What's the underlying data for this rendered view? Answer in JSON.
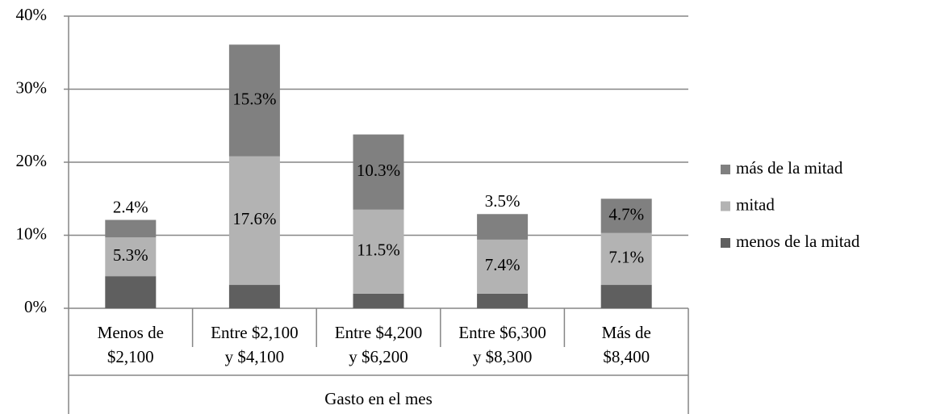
{
  "chart_data": {
    "type": "stacked_bar",
    "x_label": "Gasto en el mes",
    "categories": [
      "Menos de\n$2,100",
      "Entre $2,100\ny $4,100",
      "Entre $4,200\ny $6,200",
      "Entre $6,300\ny $8,300",
      "Más de\n$8,400"
    ],
    "series": [
      {
        "name": "menos de la mitad",
        "color": "#5f5f5f",
        "values": [
          4.4,
          3.2,
          2.0,
          2.0,
          3.2
        ]
      },
      {
        "name": "mitad",
        "color": "#b3b3b3",
        "values": [
          5.3,
          17.6,
          11.5,
          7.4,
          7.1
        ],
        "value_labels": [
          "5.3%",
          "17.6%",
          "11.5%",
          "7.4%",
          "7.1%"
        ]
      },
      {
        "name": "más de la mitad",
        "color": "#808080",
        "values": [
          2.4,
          15.3,
          10.3,
          3.5,
          4.7
        ],
        "value_labels": [
          "2.4%",
          "15.3%",
          "10.3%",
          "3.5%",
          "4.7%"
        ]
      }
    ],
    "ylim": [
      0,
      40
    ],
    "yticks": [
      {
        "value": 0,
        "label": "0%"
      },
      {
        "value": 10,
        "label": "10%"
      },
      {
        "value": 20,
        "label": "20%"
      },
      {
        "value": 30,
        "label": "30%"
      },
      {
        "value": 40,
        "label": "40%"
      }
    ],
    "grid": true,
    "legend": "right"
  }
}
